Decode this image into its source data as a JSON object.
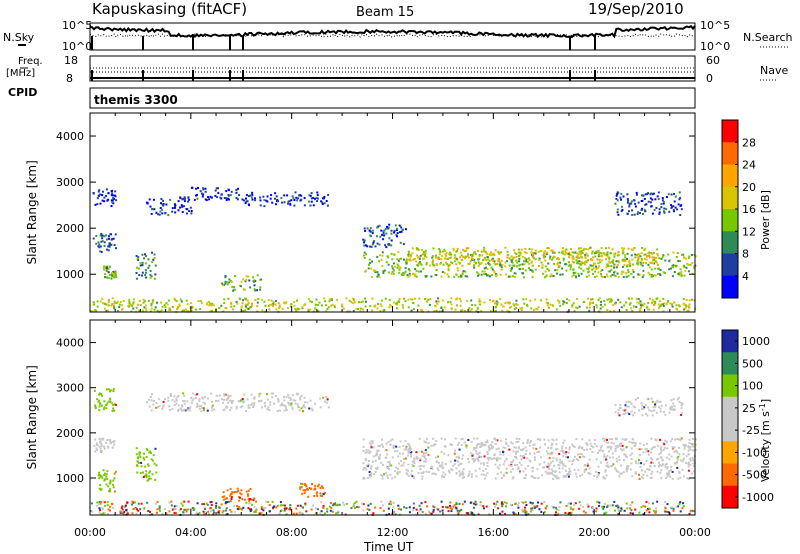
{
  "header": {
    "station": "Kapuskasing (fitACF)",
    "beam": "Beam 15",
    "date": "19/Sep/2010"
  },
  "top_panels": {
    "nsky_label": "N.Sky",
    "nsky_ticks": [
      "10^5",
      "10^0"
    ],
    "nsearch_label": "N.Search",
    "nsearch_ticks": [
      "10^5",
      "10^0"
    ],
    "freq_label": "Freq.",
    "freq_unit": "[MHz]",
    "freq_ticks": [
      "18",
      "8"
    ],
    "nave_label": "Nave",
    "nave_ticks": [
      "60",
      "0"
    ],
    "cpid_label": "CPID",
    "cpid_value": "themis 3300"
  },
  "power_colorbar": {
    "label": "Power [dB]",
    "ticks": [
      "28",
      "24",
      "20",
      "16",
      "12",
      "8",
      "4"
    ],
    "colors": [
      "#ff0000",
      "#ff6a00",
      "#ffa500",
      "#d8c400",
      "#78c800",
      "#2e8b57",
      "#1e3fa0",
      "#0000ff"
    ]
  },
  "velocity_colorbar": {
    "label": "Velocity [m s",
    "label_sup": "-1",
    "label_end": "]",
    "ticks": [
      "1000",
      "500",
      "100",
      "25",
      "-25",
      "-100",
      "-500",
      "-1000"
    ],
    "colors": [
      "#1e2a9e",
      "#2e8b57",
      "#78c800",
      "#c8c8c8",
      "#c8c8c8",
      "#ffa500",
      "#ff6a00",
      "#ff0000"
    ]
  },
  "chart_data": [
    {
      "type": "heatmap",
      "title": "",
      "ylabel": "Slant Range [km]",
      "xlabel": "Time UT",
      "y_ticks": [
        "4000",
        "3000",
        "2000",
        "1000"
      ],
      "ylim": [
        180,
        4500
      ],
      "x_ticks": [
        "00:00",
        "04:00",
        "08:00",
        "12:00",
        "16:00",
        "20:00",
        "00:00"
      ],
      "xlim_hours": [
        0,
        24
      ],
      "bands": [
        {
          "t0": 0.1,
          "t1": 1.0,
          "r0": 2500,
          "r1": 2900,
          "level": 4
        },
        {
          "t0": 0.1,
          "t1": 1.0,
          "r0": 1500,
          "r1": 1900,
          "level": 6
        },
        {
          "t0": 0.5,
          "t1": 1.0,
          "r0": 900,
          "r1": 1200,
          "level": 12
        },
        {
          "t0": 1.8,
          "t1": 2.6,
          "r0": 900,
          "r1": 1500,
          "level": 10
        },
        {
          "t0": 2.2,
          "t1": 4.0,
          "r0": 2300,
          "r1": 2700,
          "level": 4
        },
        {
          "t0": 4.0,
          "t1": 6.0,
          "r0": 2600,
          "r1": 2900,
          "level": 4
        },
        {
          "t0": 6.0,
          "t1": 9.5,
          "r0": 2500,
          "r1": 2800,
          "level": 4
        },
        {
          "t0": 5.2,
          "t1": 6.8,
          "r0": 650,
          "r1": 1000,
          "level": 12
        },
        {
          "t0": 10.8,
          "t1": 24.0,
          "r0": 950,
          "r1": 1500,
          "level": 14
        },
        {
          "t0": 10.8,
          "t1": 12.5,
          "r0": 1600,
          "r1": 2100,
          "level": 6
        },
        {
          "t0": 12.5,
          "t1": 22.5,
          "r0": 1200,
          "r1": 1600,
          "level": 18
        },
        {
          "t0": 20.8,
          "t1": 23.5,
          "r0": 2300,
          "r1": 2800,
          "level": 6
        },
        {
          "t0": 0.0,
          "t1": 24.0,
          "r0": 200,
          "r1": 500,
          "level": 16
        }
      ]
    },
    {
      "type": "heatmap",
      "title": "",
      "ylabel": "Slant Range [km]",
      "xlabel": "Time UT",
      "y_ticks": [
        "4000",
        "3000",
        "2000",
        "1000"
      ],
      "ylim": [
        180,
        4500
      ],
      "x_ticks": [
        "00:00",
        "04:00",
        "08:00",
        "12:00",
        "16:00",
        "20:00",
        "00:00"
      ],
      "xlim_hours": [
        0,
        24
      ],
      "bands": [
        {
          "t0": 0.1,
          "t1": 1.0,
          "r0": 2500,
          "r1": 3000,
          "level": 100
        },
        {
          "t0": 0.1,
          "t1": 1.0,
          "r0": 1600,
          "r1": 1900,
          "level": 0
        },
        {
          "t0": 0.3,
          "t1": 1.0,
          "r0": 700,
          "r1": 1200,
          "level": 100
        },
        {
          "t0": 1.8,
          "t1": 2.6,
          "r0": 900,
          "r1": 1700,
          "level": 100
        },
        {
          "t0": 2.2,
          "t1": 9.5,
          "r0": 2500,
          "r1": 2900,
          "level": 0
        },
        {
          "t0": 5.2,
          "t1": 6.5,
          "r0": 500,
          "r1": 800,
          "level": -300
        },
        {
          "t0": 8.3,
          "t1": 9.3,
          "r0": 600,
          "r1": 900,
          "level": -300
        },
        {
          "t0": 10.8,
          "t1": 24.0,
          "r0": 1000,
          "r1": 1900,
          "level": 0
        },
        {
          "t0": 20.8,
          "t1": 23.5,
          "r0": 2400,
          "r1": 2800,
          "level": 0
        },
        {
          "t0": 0.0,
          "t1": 24.0,
          "r0": 200,
          "r1": 500,
          "level": 500
        }
      ]
    }
  ]
}
